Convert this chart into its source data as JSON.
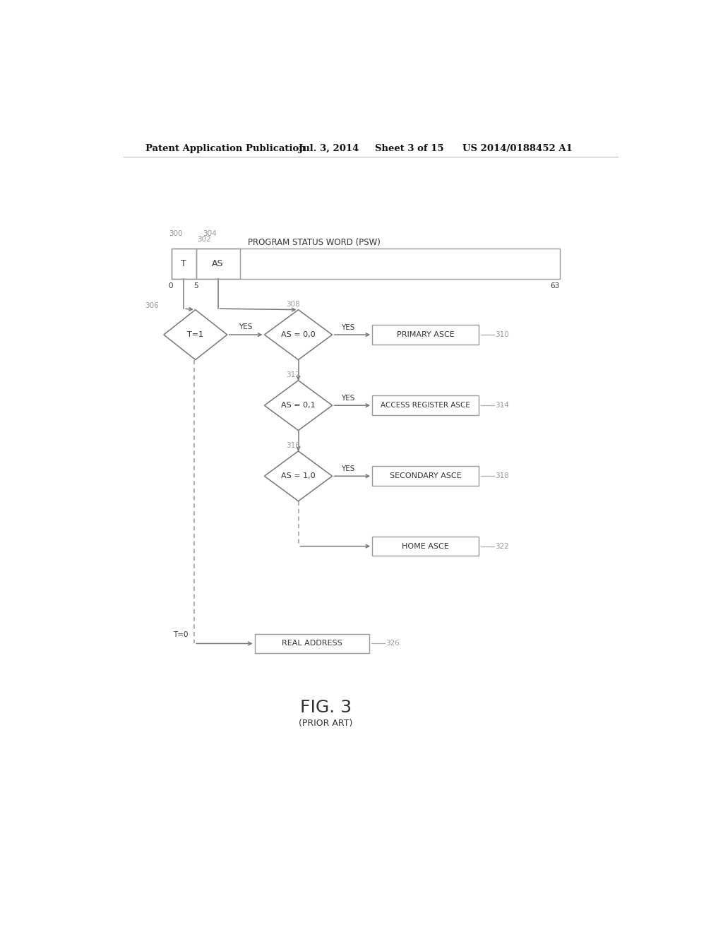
{
  "bg_color": "#ffffff",
  "header_text1": "Patent Application Publication",
  "header_text2": "Jul. 3, 2014",
  "header_text3": "Sheet 3 of 15",
  "header_text4": "US 2014/0188452 A1",
  "fig_label": "FIG. 3",
  "fig_sublabel": "(PRIOR ART)",
  "psw_label": "PROGRAM STATUS WORD (PSW)",
  "t_text": "T",
  "as_text": "AS",
  "label_300": "300",
  "label_302": "302",
  "label_304": "304",
  "bit_0": "0",
  "bit_5": "5",
  "bit_63": "63",
  "d306_label": "T=1",
  "d306_ref": "306",
  "d308_label": "AS = 0,0",
  "d308_ref": "308",
  "d312_label": "AS = 0,1",
  "d312_ref": "312",
  "d316_label": "AS = 1,0",
  "d316_ref": "316",
  "b310_label": "PRIMARY ASCE",
  "b310_ref": "310",
  "b314_label": "ACCESS REGISTER ASCE",
  "b314_ref": "314",
  "b318_label": "SECONDARY ASCE",
  "b318_ref": "318",
  "b322_label": "HOME ASCE",
  "b322_ref": "322",
  "b326_label": "REAL ADDRESS",
  "b326_ref": "326",
  "yes_label": "YES",
  "t0_label": "T=0",
  "line_color": "#777777",
  "text_color": "#333333",
  "ref_color": "#999999",
  "dashed_color": "#999999"
}
